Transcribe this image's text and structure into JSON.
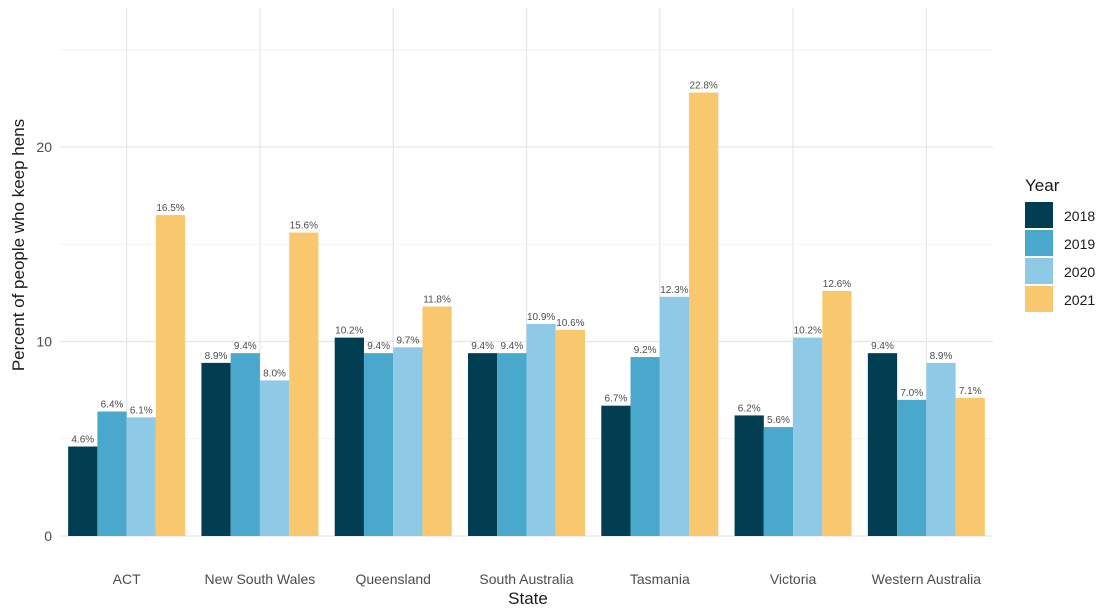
{
  "chart_data": {
    "type": "bar",
    "title": "",
    "xlabel": "State",
    "ylabel": "Percent of people who keep hens",
    "categories": [
      "ACT",
      "New South Wales",
      "Queensland",
      "South Australia",
      "Tasmania",
      "Victoria",
      "Western Australia"
    ],
    "series": [
      {
        "name": "2018",
        "color": "#023e51",
        "values": [
          4.6,
          8.9,
          10.2,
          9.4,
          6.7,
          6.2,
          9.4
        ],
        "labels": [
          "4.6%",
          "8.9%",
          "10.2%",
          "9.4%",
          "6.7%",
          "6.2%",
          "9.4%"
        ]
      },
      {
        "name": "2019",
        "color": "#4aa8cc",
        "values": [
          6.4,
          9.4,
          9.4,
          9.4,
          9.2,
          5.6,
          7.0
        ],
        "labels": [
          "6.4%",
          "9.4%",
          "9.4%",
          "9.4%",
          "9.2%",
          "5.6%",
          "7.0%"
        ]
      },
      {
        "name": "2020",
        "color": "#8ecae6",
        "values": [
          6.1,
          8.0,
          9.7,
          10.9,
          12.3,
          10.2,
          8.9
        ],
        "labels": [
          "6.1%",
          "8.0%",
          "9.7%",
          "10.9%",
          "12.3%",
          "10.2%",
          "8.9%"
        ]
      },
      {
        "name": "2021",
        "color": "#f9c86e",
        "values": [
          16.5,
          15.6,
          11.8,
          10.6,
          22.8,
          12.6,
          7.1
        ],
        "labels": [
          "16.5%",
          "15.6%",
          "11.8%",
          "10.6%",
          "22.8%",
          "12.6%",
          "7.1%"
        ]
      }
    ],
    "ylim": [
      0,
      25
    ],
    "yticks": [
      0,
      10,
      20
    ],
    "grid": true,
    "legend": {
      "title": "Year",
      "position": "right"
    }
  }
}
